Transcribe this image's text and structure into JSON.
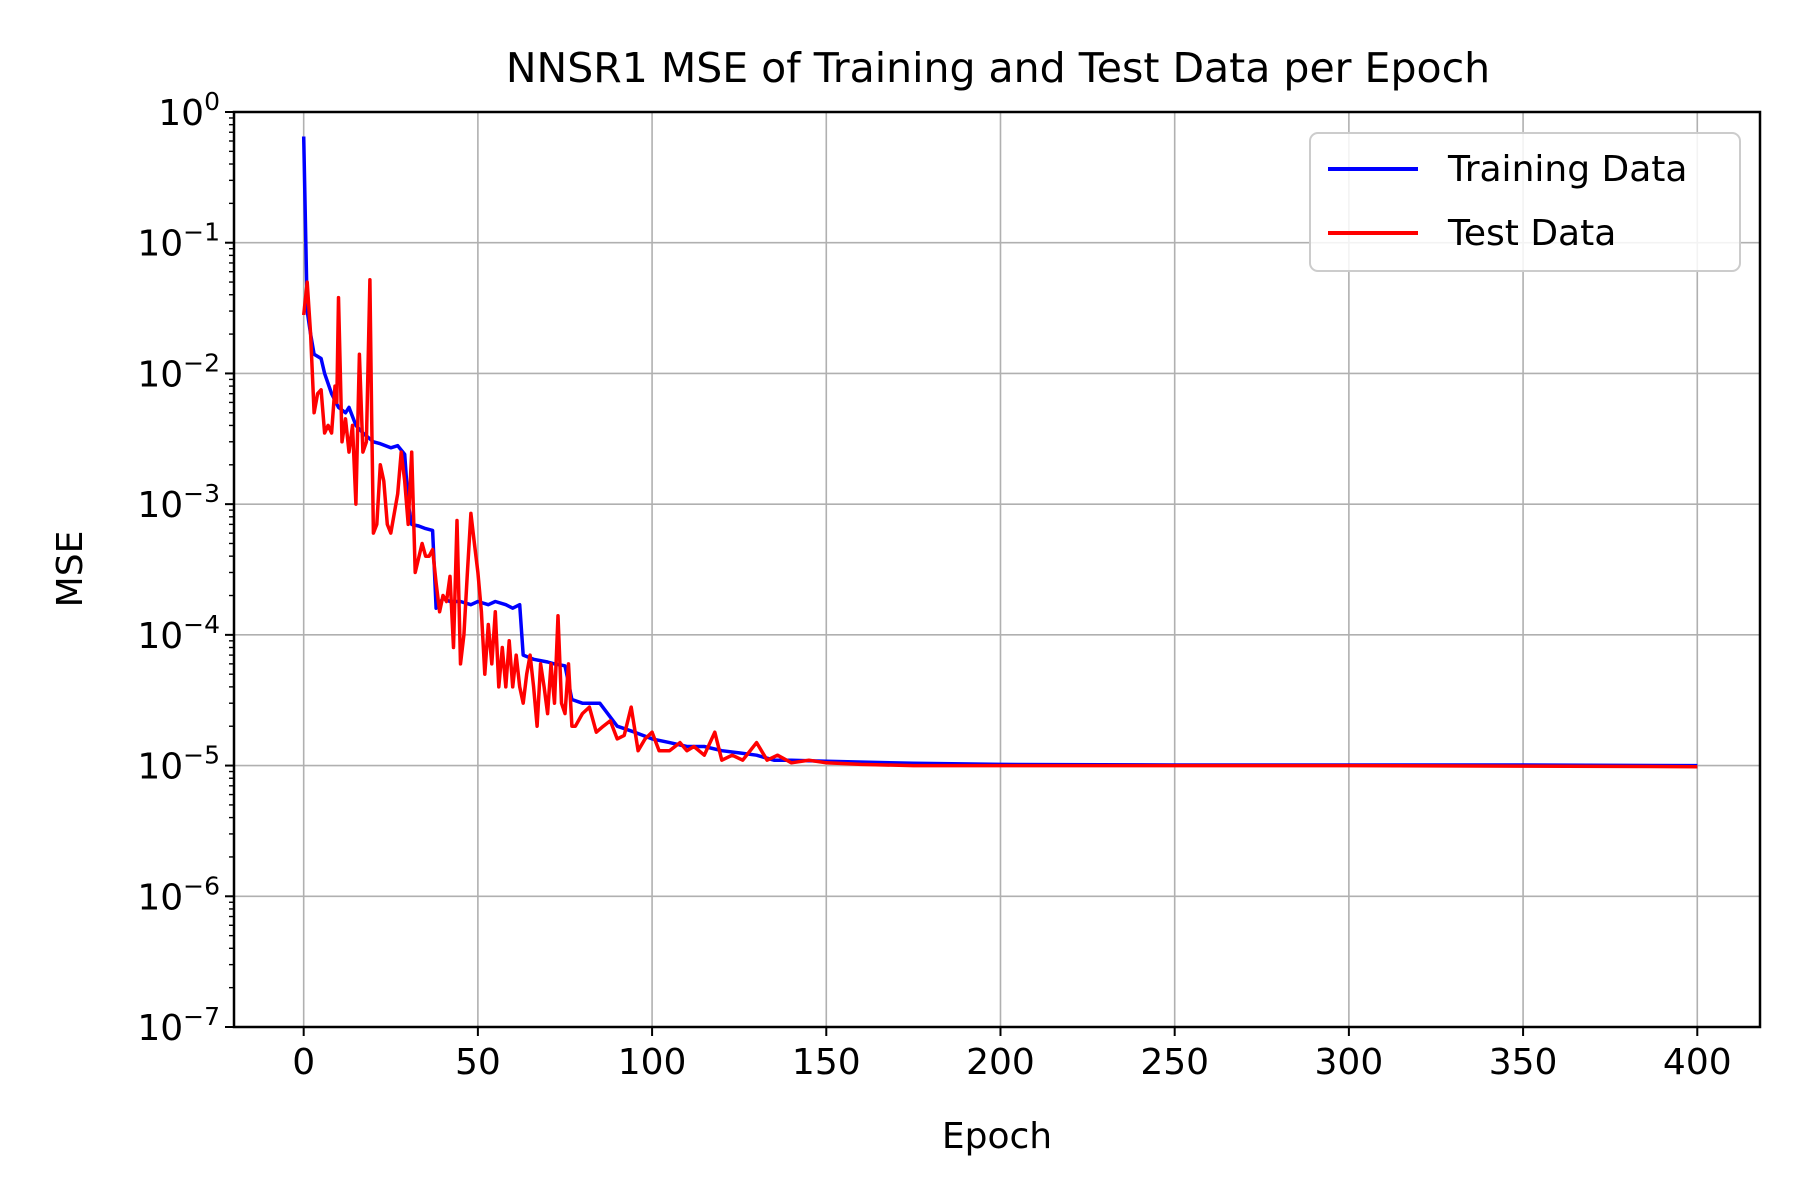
{
  "chart_data": {
    "type": "line",
    "title": "NNSR1 MSE of Training and Test Data per Epoch",
    "xlabel": "Epoch",
    "ylabel": "MSE",
    "xlim": [
      -20,
      418
    ],
    "ylim": [
      1e-07,
      1
    ],
    "yscale": "log",
    "grid": true,
    "legend_position": "top-right",
    "x_ticks": [
      0,
      50,
      100,
      150,
      200,
      250,
      300,
      350,
      400
    ],
    "y_ticks": [
      {
        "value": 1e-07,
        "base": "10",
        "exp": "−7"
      },
      {
        "value": 1e-06,
        "base": "10",
        "exp": "−6"
      },
      {
        "value": 1e-05,
        "base": "10",
        "exp": "−5"
      },
      {
        "value": 0.0001,
        "base": "10",
        "exp": "−4"
      },
      {
        "value": 0.001,
        "base": "10",
        "exp": "−3"
      },
      {
        "value": 0.01,
        "base": "10",
        "exp": "−2"
      },
      {
        "value": 0.1,
        "base": "10",
        "exp": "−1"
      },
      {
        "value": 1,
        "base": "10",
        "exp": "0"
      }
    ],
    "series": [
      {
        "name": "Training Data",
        "color": "#0000ff",
        "points": [
          [
            0,
            0.65
          ],
          [
            1,
            0.03
          ],
          [
            2,
            0.02
          ],
          [
            3,
            0.014
          ],
          [
            5,
            0.013
          ],
          [
            6,
            0.01
          ],
          [
            8,
            0.007
          ],
          [
            10,
            0.0055
          ],
          [
            12,
            0.005
          ],
          [
            13,
            0.0055
          ],
          [
            15,
            0.004
          ],
          [
            17,
            0.0035
          ],
          [
            20,
            0.003
          ],
          [
            22,
            0.0029
          ],
          [
            25,
            0.0027
          ],
          [
            27,
            0.0028
          ],
          [
            29,
            0.0024
          ],
          [
            30,
            0.001
          ],
          [
            31,
            0.0007
          ],
          [
            33,
            0.00068
          ],
          [
            35,
            0.00065
          ],
          [
            37,
            0.00063
          ],
          [
            38,
            0.00016
          ],
          [
            40,
            0.00019
          ],
          [
            42,
            0.00018
          ],
          [
            45,
            0.00018
          ],
          [
            48,
            0.00017
          ],
          [
            50,
            0.00018
          ],
          [
            53,
            0.00017
          ],
          [
            55,
            0.00018
          ],
          [
            58,
            0.00017
          ],
          [
            60,
            0.00016
          ],
          [
            62,
            0.00017
          ],
          [
            63,
            7e-05
          ],
          [
            66,
            6.5e-05
          ],
          [
            70,
            6.2e-05
          ],
          [
            72,
            6e-05
          ],
          [
            75,
            5.8e-05
          ],
          [
            77,
            3.2e-05
          ],
          [
            80,
            3e-05
          ],
          [
            85,
            3e-05
          ],
          [
            90,
            2e-05
          ],
          [
            95,
            1.8e-05
          ],
          [
            100,
            1.6e-05
          ],
          [
            105,
            1.5e-05
          ],
          [
            110,
            1.4e-05
          ],
          [
            115,
            1.4e-05
          ],
          [
            120,
            1.3e-05
          ],
          [
            125,
            1.25e-05
          ],
          [
            130,
            1.2e-05
          ],
          [
            135,
            1.1e-05
          ],
          [
            140,
            1.1e-05
          ],
          [
            150,
            1.08e-05
          ],
          [
            175,
            1.04e-05
          ],
          [
            200,
            1.02e-05
          ],
          [
            250,
            1.01e-05
          ],
          [
            300,
            1.01e-05
          ],
          [
            350,
            1.01e-05
          ],
          [
            400,
            1e-05
          ]
        ]
      },
      {
        "name": "Test Data",
        "color": "#ff0000",
        "points": [
          [
            0,
            0.028
          ],
          [
            1,
            0.05
          ],
          [
            2,
            0.02
          ],
          [
            3,
            0.005
          ],
          [
            4,
            0.007
          ],
          [
            5,
            0.0075
          ],
          [
            6,
            0.0035
          ],
          [
            7,
            0.004
          ],
          [
            8,
            0.0035
          ],
          [
            9,
            0.008
          ],
          [
            9.5,
            0.006
          ],
          [
            10,
            0.038
          ],
          [
            11,
            0.003
          ],
          [
            12,
            0.0045
          ],
          [
            13,
            0.0025
          ],
          [
            14,
            0.004
          ],
          [
            15,
            0.001
          ],
          [
            16,
            0.014
          ],
          [
            17,
            0.0025
          ],
          [
            18,
            0.003
          ],
          [
            19,
            0.052
          ],
          [
            19.5,
            0.005
          ],
          [
            20,
            0.0006
          ],
          [
            21,
            0.0007
          ],
          [
            22,
            0.002
          ],
          [
            23,
            0.0015
          ],
          [
            24,
            0.0007
          ],
          [
            25,
            0.0006
          ],
          [
            27,
            0.0012
          ],
          [
            28,
            0.0025
          ],
          [
            29,
            0.0015
          ],
          [
            30,
            0.0007
          ],
          [
            31,
            0.0025
          ],
          [
            32,
            0.0003
          ],
          [
            34,
            0.0005
          ],
          [
            35,
            0.0004
          ],
          [
            36,
            0.0004
          ],
          [
            37,
            0.00045
          ],
          [
            38,
            0.00025
          ],
          [
            39,
            0.00015
          ],
          [
            40,
            0.0002
          ],
          [
            41,
            0.00018
          ],
          [
            42,
            0.00028
          ],
          [
            43,
            8e-05
          ],
          [
            44,
            0.00075
          ],
          [
            45,
            6e-05
          ],
          [
            46,
            0.0001
          ],
          [
            47,
            0.0003
          ],
          [
            48,
            0.00085
          ],
          [
            49,
            0.0005
          ],
          [
            50,
            0.0003
          ],
          [
            51,
            0.00015
          ],
          [
            52,
            5e-05
          ],
          [
            53,
            0.00012
          ],
          [
            54,
            6e-05
          ],
          [
            55,
            0.00015
          ],
          [
            56,
            4e-05
          ],
          [
            57,
            8e-05
          ],
          [
            58,
            4e-05
          ],
          [
            59,
            9e-05
          ],
          [
            60,
            4e-05
          ],
          [
            61,
            7e-05
          ],
          [
            62,
            4e-05
          ],
          [
            63,
            3e-05
          ],
          [
            64,
            5e-05
          ],
          [
            65,
            7e-05
          ],
          [
            66,
            4e-05
          ],
          [
            67,
            2e-05
          ],
          [
            68,
            6e-05
          ],
          [
            69,
            4e-05
          ],
          [
            70,
            2.5e-05
          ],
          [
            71,
            6e-05
          ],
          [
            72,
            3e-05
          ],
          [
            73,
            0.00014
          ],
          [
            74,
            3e-05
          ],
          [
            75,
            2.5e-05
          ],
          [
            76,
            6e-05
          ],
          [
            77,
            2e-05
          ],
          [
            78,
            2e-05
          ],
          [
            80,
            2.5e-05
          ],
          [
            82,
            2.8e-05
          ],
          [
            84,
            1.8e-05
          ],
          [
            86,
            2e-05
          ],
          [
            88,
            2.2e-05
          ],
          [
            90,
            1.6e-05
          ],
          [
            92,
            1.7e-05
          ],
          [
            94,
            2.8e-05
          ],
          [
            96,
            1.3e-05
          ],
          [
            98,
            1.6e-05
          ],
          [
            100,
            1.8e-05
          ],
          [
            102,
            1.3e-05
          ],
          [
            105,
            1.3e-05
          ],
          [
            108,
            1.5e-05
          ],
          [
            110,
            1.3e-05
          ],
          [
            112,
            1.4e-05
          ],
          [
            115,
            1.2e-05
          ],
          [
            118,
            1.8e-05
          ],
          [
            120,
            1.1e-05
          ],
          [
            123,
            1.2e-05
          ],
          [
            126,
            1.1e-05
          ],
          [
            130,
            1.5e-05
          ],
          [
            133,
            1.1e-05
          ],
          [
            136,
            1.2e-05
          ],
          [
            140,
            1.05e-05
          ],
          [
            145,
            1.1e-05
          ],
          [
            150,
            1.05e-05
          ],
          [
            160,
            1.02e-05
          ],
          [
            175,
            1e-05
          ],
          [
            200,
            1e-05
          ],
          [
            250,
            1e-05
          ],
          [
            300,
            1e-05
          ],
          [
            350,
            9.9e-06
          ],
          [
            400,
            9.8e-06
          ]
        ]
      }
    ]
  }
}
